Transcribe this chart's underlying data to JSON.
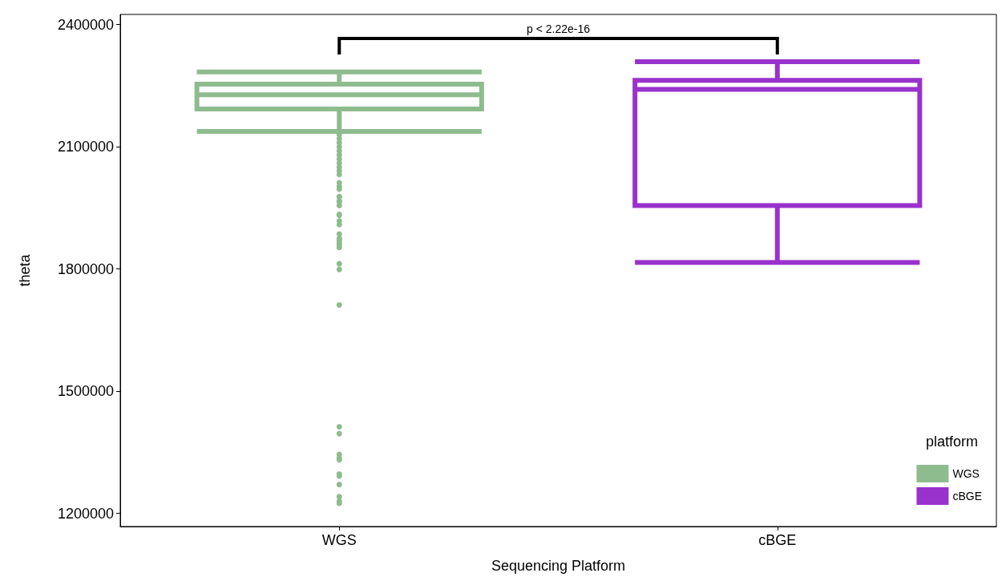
{
  "chart_data": {
    "type": "box",
    "xlabel": "Sequencing Platform",
    "ylabel": "theta",
    "legend_title": "platform",
    "legend": "bottom right",
    "marker": "circle",
    "grid": false,
    "categories": [
      "WGS",
      "cBGE"
    ],
    "series": [
      {
        "name": "WGS",
        "color": "#8fbc8f",
        "boxes": [
          {
            "low": 2138000,
            "q1": 2193000,
            "median": 2228000,
            "q3": 2254000,
            "high": 2284000,
            "outliers": [
              2130000,
              2120000,
              2110000,
              2100000,
              2090000,
              2080000,
              2070000,
              2060000,
              2050000,
              2041000,
              2032000,
              2012000,
              2003000,
              1996000,
              1978000,
              1977000,
              1965000,
              1967000,
              1956000,
              1932000,
              1934000,
              1918000,
              1909000,
              1886000,
              1875000,
              1874000,
              1870000,
              1864000,
              1859000,
              1853000,
              1813000,
              1799000,
              1712000,
              1413000,
              1396000,
              1345000,
              1336000,
              1332000,
              1297000,
              1292000,
              1271000,
              1241000,
              1230000,
              1225000
            ]
          },
          null
        ]
      },
      {
        "name": "cBGE",
        "color": "#9932cc",
        "boxes": [
          null,
          {
            "low": 1816000,
            "q1": 1956000,
            "median": 2241000,
            "q3": 2263000,
            "high": 2309000
          }
        ]
      }
    ],
    "ylim": [
      1168000,
      2425000
    ],
    "yticks": [
      1200000,
      1500000,
      1800000,
      2100000,
      2400000
    ],
    "annotations": [
      "p < 2.22e-16"
    ]
  }
}
